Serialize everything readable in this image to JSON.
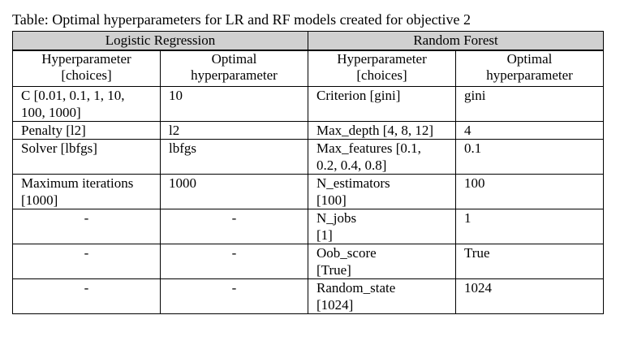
{
  "caption": "Table: Optimal hyperparameters for LR and RF models created for objective 2",
  "groups": [
    "Logistic Regression",
    "Random Forest"
  ],
  "subheaders": {
    "lr_param": [
      "Hyperparameter",
      "[choices]"
    ],
    "lr_opt": [
      "Optimal",
      "hyperparameter"
    ],
    "rf_param": [
      "Hyperparameter",
      "[choices]"
    ],
    "rf_opt": [
      "Optimal",
      "hyperparameter"
    ]
  },
  "rows": [
    {
      "lr_param": [
        "C [0.01, 0.1, 1, 10,",
        "100, 1000]"
      ],
      "lr_opt": "10",
      "rf_param": [
        "Criterion [gini]"
      ],
      "rf_opt": "gini"
    },
    {
      "lr_param": [
        "Penalty [l2]"
      ],
      "lr_opt": "l2",
      "rf_param": [
        "Max_depth [4, 8, 12]"
      ],
      "rf_opt": "4"
    },
    {
      "lr_param": [
        "Solver [lbfgs]"
      ],
      "lr_opt": "lbfgs",
      "rf_param": [
        "Max_features [0.1,",
        "0.2, 0.4, 0.8]"
      ],
      "rf_opt": "0.1"
    },
    {
      "lr_param": [
        "Maximum iterations",
        "[1000]"
      ],
      "lr_opt": "1000",
      "rf_param": [
        "N_estimators",
        "[100]"
      ],
      "rf_opt": "100"
    },
    {
      "lr_param": [
        "-"
      ],
      "lr_opt": "-",
      "rf_param": [
        "N_jobs",
        "[1]"
      ],
      "rf_opt": "1"
    },
    {
      "lr_param": [
        "-"
      ],
      "lr_opt": "-",
      "rf_param": [
        "Oob_score",
        "[True]"
      ],
      "rf_opt": "True"
    },
    {
      "lr_param": [
        "-"
      ],
      "lr_opt": "-",
      "rf_param": [
        "Random_state",
        "[1024]"
      ],
      "rf_opt": "1024"
    }
  ]
}
